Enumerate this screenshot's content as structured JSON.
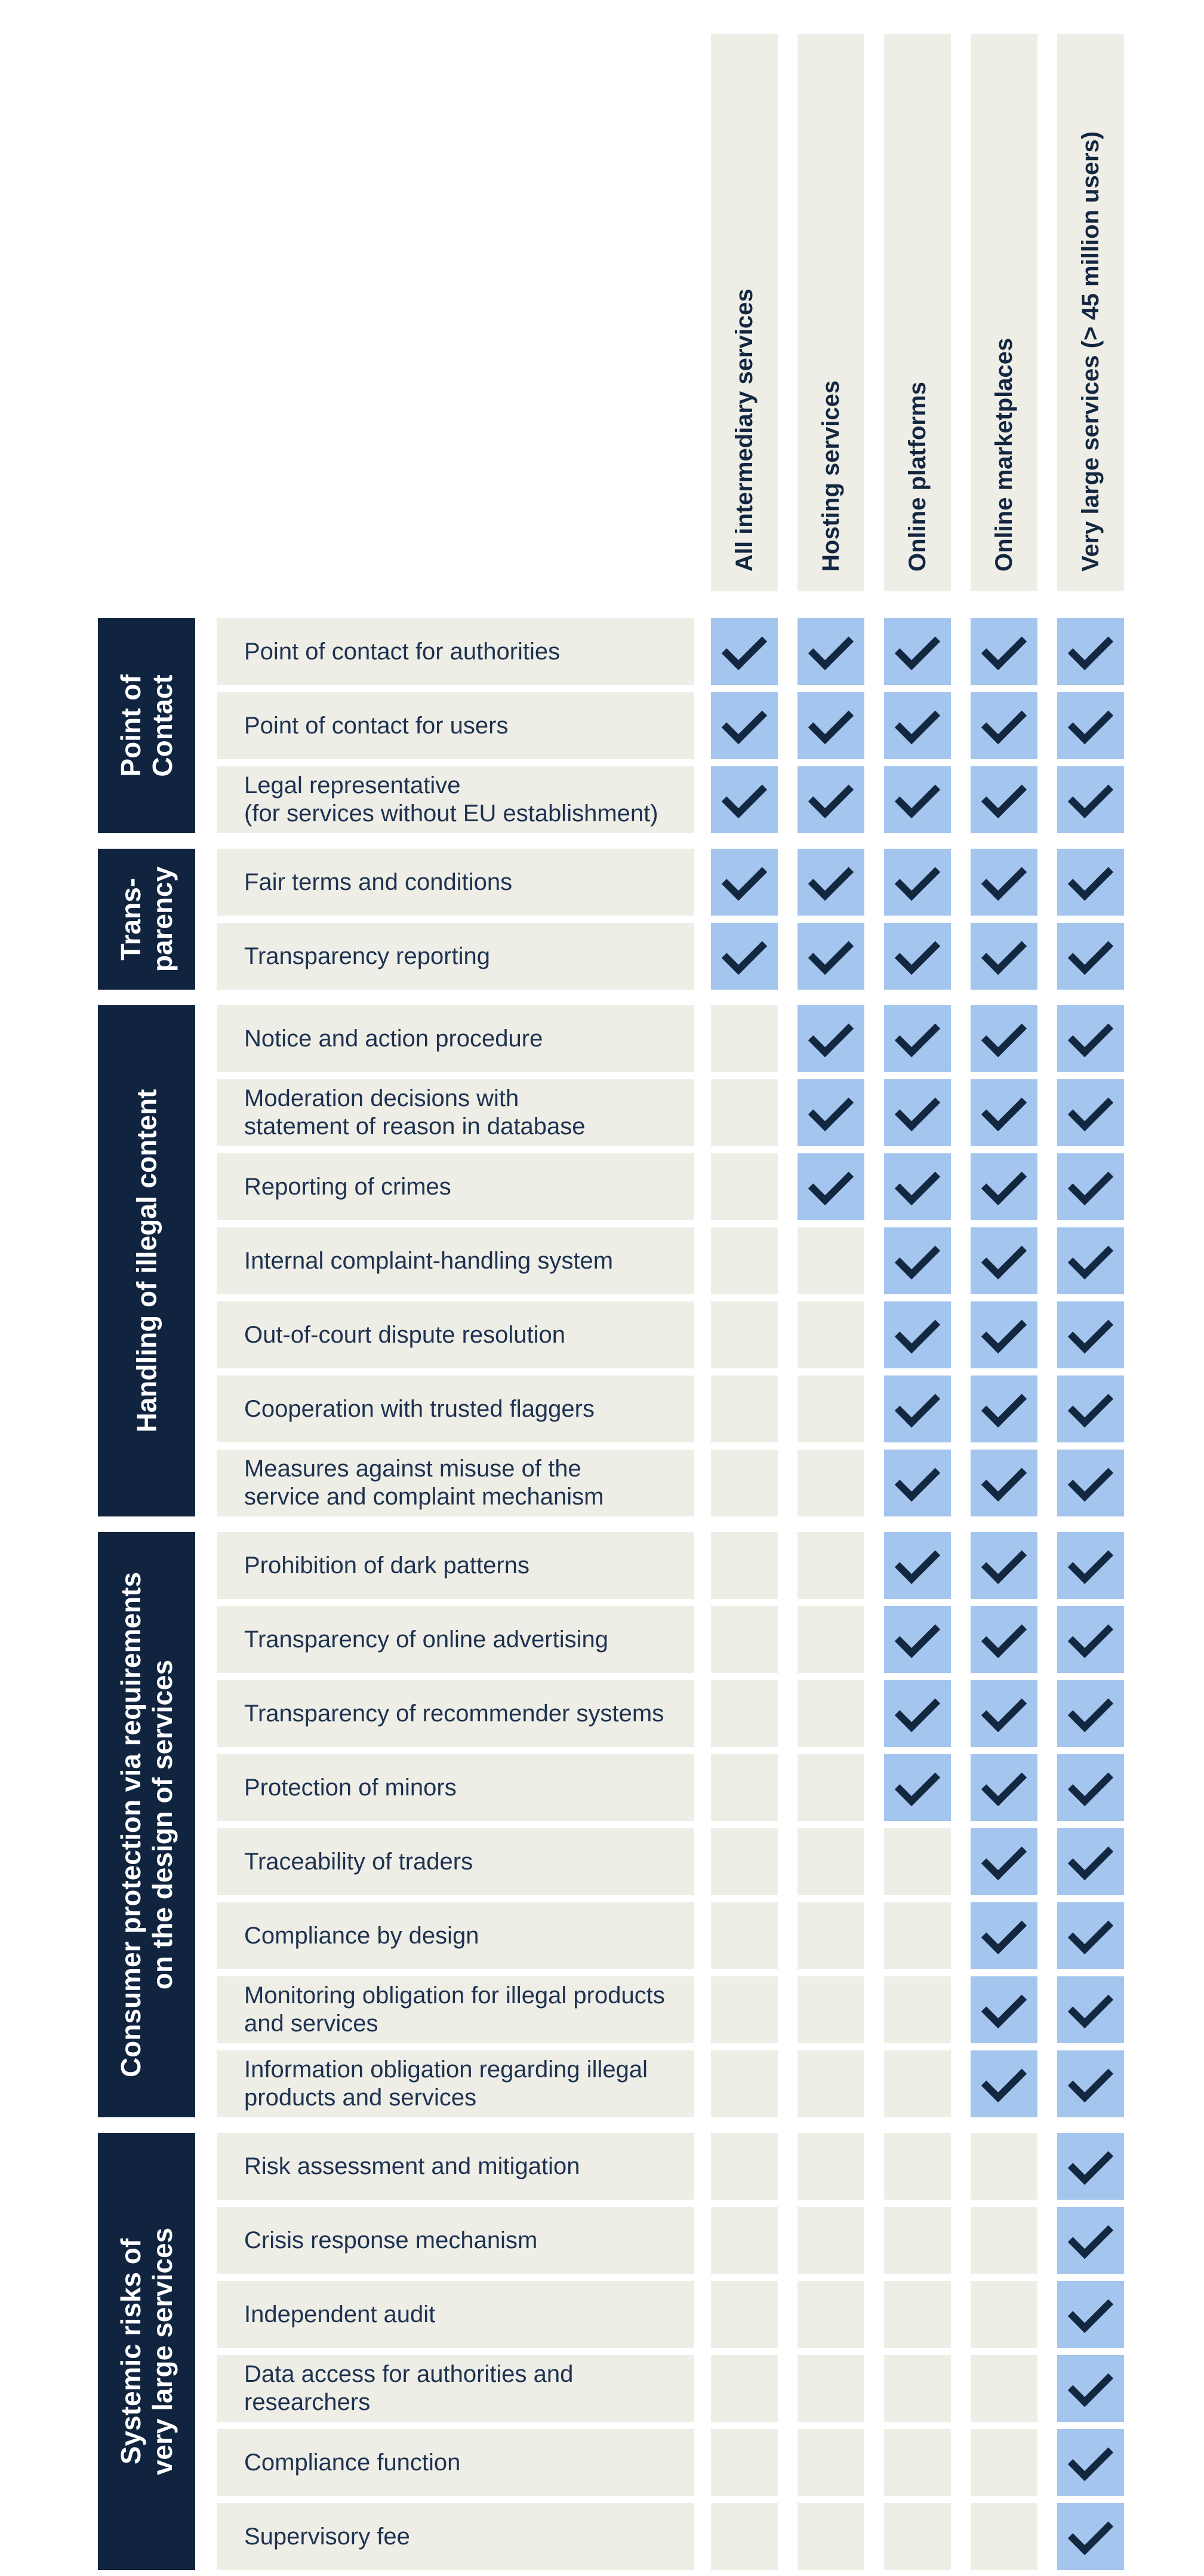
{
  "colors": {
    "page_background": "#ffffff",
    "navy_band": "#102440",
    "check_navy": "#132741",
    "check_blue": "#a4c6ee",
    "cell_beige": "#efeee6",
    "row_label_text": "#1d3251",
    "header_text": "#132741"
  },
  "table": {
    "columns": [
      {
        "label": "All intermediary services"
      },
      {
        "label": "Hosting services"
      },
      {
        "label": "Online platforms"
      },
      {
        "label": "Online marketplaces"
      },
      {
        "label": "Very large services (> 45 million users)"
      }
    ],
    "groups": [
      {
        "label": "Point of\nContact",
        "rows": [
          {
            "label": "Point of contact for authorities",
            "checks": [
              true,
              true,
              true,
              true,
              true
            ]
          },
          {
            "label": "Point of contact for users",
            "checks": [
              true,
              true,
              true,
              true,
              true
            ]
          },
          {
            "label": "Legal representative\n(for services without EU establishment)",
            "checks": [
              true,
              true,
              true,
              true,
              true
            ]
          }
        ]
      },
      {
        "label": "Trans-\nparency",
        "rows": [
          {
            "label": "Fair terms and conditions",
            "checks": [
              true,
              true,
              true,
              true,
              true
            ]
          },
          {
            "label": "Transparency reporting",
            "checks": [
              true,
              true,
              true,
              true,
              true
            ]
          }
        ]
      },
      {
        "label": "Handling of illegal content",
        "rows": [
          {
            "label": "Notice and action procedure",
            "checks": [
              false,
              true,
              true,
              true,
              true
            ]
          },
          {
            "label": "Moderation decisions with\nstatement of reason in database",
            "checks": [
              false,
              true,
              true,
              true,
              true
            ]
          },
          {
            "label": "Reporting of crimes",
            "checks": [
              false,
              true,
              true,
              true,
              true
            ]
          },
          {
            "label": "Internal complaint-handling system",
            "checks": [
              false,
              false,
              true,
              true,
              true
            ]
          },
          {
            "label": "Out-of-court dispute resolution",
            "checks": [
              false,
              false,
              true,
              true,
              true
            ]
          },
          {
            "label": "Cooperation with trusted flaggers",
            "checks": [
              false,
              false,
              true,
              true,
              true
            ]
          },
          {
            "label": "Measures against misuse of the\nservice and complaint mechanism",
            "checks": [
              false,
              false,
              true,
              true,
              true
            ]
          }
        ]
      },
      {
        "label": "Consumer protection via requirements\non the design of services",
        "rows": [
          {
            "label": "Prohibition of dark patterns",
            "checks": [
              false,
              false,
              true,
              true,
              true
            ]
          },
          {
            "label": "Transparency of online advertising",
            "checks": [
              false,
              false,
              true,
              true,
              true
            ]
          },
          {
            "label": "Transparency of recommender systems",
            "checks": [
              false,
              false,
              true,
              true,
              true
            ]
          },
          {
            "label": "Protection of minors",
            "checks": [
              false,
              false,
              true,
              true,
              true
            ]
          },
          {
            "label": "Traceability of traders",
            "checks": [
              false,
              false,
              false,
              true,
              true
            ]
          },
          {
            "label": "Compliance by design",
            "checks": [
              false,
              false,
              false,
              true,
              true
            ]
          },
          {
            "label": "Monitoring obligation for illegal products\nand services",
            "checks": [
              false,
              false,
              false,
              true,
              true
            ]
          },
          {
            "label": "Information obligation regarding illegal\nproducts and services",
            "checks": [
              false,
              false,
              false,
              true,
              true
            ]
          }
        ]
      },
      {
        "label": "Systemic risks of\nvery large services",
        "rows": [
          {
            "label": "Risk assessment and mitigation",
            "checks": [
              false,
              false,
              false,
              false,
              true
            ]
          },
          {
            "label": "Crisis response mechanism",
            "checks": [
              false,
              false,
              false,
              false,
              true
            ]
          },
          {
            "label": "Independent audit",
            "checks": [
              false,
              false,
              false,
              false,
              true
            ]
          },
          {
            "label": "Data access for authorities and\nresearchers",
            "checks": [
              false,
              false,
              false,
              false,
              true
            ]
          },
          {
            "label": "Compliance function",
            "checks": [
              false,
              false,
              false,
              false,
              true
            ]
          },
          {
            "label": "Supervisory fee",
            "checks": [
              false,
              false,
              false,
              false,
              true
            ]
          }
        ]
      }
    ]
  }
}
